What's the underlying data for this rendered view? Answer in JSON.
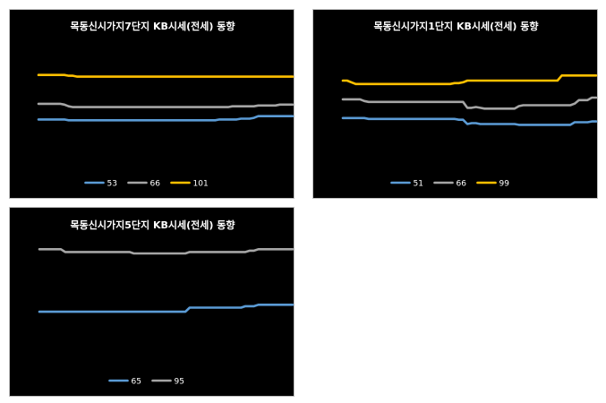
{
  "chart_data": [
    {
      "type": "line",
      "title": "목동신시가지7단지 KB시세(전세) 동향",
      "legend_position": "bottom",
      "grid": false,
      "x_count": 60,
      "ylim": [
        0,
        100
      ],
      "series": [
        {
          "name": "53",
          "color": "#5b9bd5",
          "values": [
            30,
            30,
            30,
            30,
            30,
            30,
            30,
            29,
            29,
            29,
            29,
            29,
            29,
            29,
            29,
            29,
            29,
            29,
            29,
            29,
            29,
            29,
            29,
            29,
            29,
            29,
            29,
            29,
            29,
            29,
            29,
            29,
            29,
            29,
            29,
            29,
            29,
            29,
            29,
            29,
            29,
            29,
            30,
            30,
            30,
            30,
            30,
            31,
            31,
            31,
            32,
            34,
            34,
            34,
            34,
            34,
            34,
            34,
            34,
            34
          ]
        },
        {
          "name": "66",
          "color": "#a5a5a5",
          "values": [
            49,
            49,
            49,
            49,
            49,
            49,
            48,
            46,
            45,
            45,
            45,
            45,
            45,
            45,
            45,
            45,
            45,
            45,
            45,
            45,
            45,
            45,
            45,
            45,
            45,
            45,
            45,
            45,
            45,
            45,
            45,
            45,
            45,
            45,
            45,
            45,
            45,
            45,
            45,
            45,
            45,
            45,
            45,
            45,
            45,
            46,
            46,
            46,
            46,
            46,
            46,
            47,
            47,
            47,
            47,
            47,
            48,
            48,
            48,
            48
          ]
        },
        {
          "name": "101",
          "color": "#ffc000",
          "values": [
            84,
            84,
            84,
            84,
            84,
            84,
            84,
            83,
            83,
            82,
            82,
            82,
            82,
            82,
            82,
            82,
            82,
            82,
            82,
            82,
            82,
            82,
            82,
            82,
            82,
            82,
            82,
            82,
            82,
            82,
            82,
            82,
            82,
            82,
            82,
            82,
            82,
            82,
            82,
            82,
            82,
            82,
            82,
            82,
            82,
            82,
            82,
            82,
            82,
            82,
            82,
            82,
            82,
            82,
            82,
            82,
            82,
            82,
            82,
            82
          ]
        }
      ]
    },
    {
      "type": "line",
      "title": "목동신시가지1단지 KB시세(전세) 동향",
      "legend_position": "bottom",
      "grid": false,
      "x_count": 60,
      "ylim": [
        0,
        100
      ],
      "series": [
        {
          "name": "51",
          "color": "#5b9bd5",
          "values": [
            36,
            36,
            36,
            36,
            36,
            36,
            35,
            35,
            35,
            35,
            35,
            35,
            35,
            35,
            35,
            35,
            35,
            35,
            35,
            35,
            35,
            35,
            35,
            35,
            35,
            35,
            35,
            34,
            34,
            29,
            30,
            30,
            29,
            29,
            29,
            29,
            29,
            29,
            29,
            29,
            29,
            28,
            28,
            28,
            28,
            28,
            28,
            28,
            28,
            28,
            28,
            28,
            28,
            28,
            31,
            31,
            31,
            31,
            32,
            32
          ]
        },
        {
          "name": "66",
          "color": "#a5a5a5",
          "values": [
            58,
            58,
            58,
            58,
            58,
            56,
            55,
            55,
            55,
            55,
            55,
            55,
            55,
            55,
            55,
            55,
            55,
            55,
            55,
            55,
            55,
            55,
            55,
            55,
            55,
            55,
            55,
            55,
            55,
            48,
            48,
            49,
            48,
            47,
            47,
            47,
            47,
            47,
            47,
            47,
            47,
            50,
            51,
            51,
            51,
            51,
            51,
            51,
            51,
            51,
            51,
            51,
            51,
            51,
            53,
            57,
            57,
            57,
            60,
            60
          ]
        },
        {
          "name": "99",
          "color": "#ffc000",
          "values": [
            80,
            80,
            78,
            76,
            76,
            76,
            76,
            76,
            76,
            76,
            76,
            76,
            76,
            76,
            76,
            76,
            76,
            76,
            76,
            76,
            76,
            76,
            76,
            76,
            76,
            76,
            77,
            77,
            78,
            80,
            80,
            80,
            80,
            80,
            80,
            80,
            80,
            80,
            80,
            80,
            80,
            80,
            80,
            80,
            80,
            80,
            80,
            80,
            80,
            80,
            80,
            86,
            86,
            86,
            86,
            86,
            86,
            86,
            86,
            86
          ]
        }
      ]
    },
    {
      "type": "line",
      "title": "목동신시가지5단지 KB시세(전세) 동향",
      "legend_position": "bottom",
      "grid": false,
      "x_count": 60,
      "ylim": [
        0,
        100
      ],
      "series": [
        {
          "name": "65",
          "color": "#5b9bd5",
          "values": [
            38,
            38,
            38,
            38,
            38,
            38,
            38,
            38,
            38,
            38,
            38,
            38,
            38,
            38,
            38,
            38,
            38,
            38,
            38,
            38,
            38,
            38,
            38,
            38,
            38,
            38,
            38,
            38,
            38,
            38,
            38,
            38,
            38,
            38,
            38,
            41,
            41,
            41,
            41,
            41,
            41,
            41,
            41,
            41,
            41,
            41,
            41,
            41,
            42,
            42,
            42,
            43,
            43,
            43,
            43,
            43,
            43,
            43,
            43,
            43
          ]
        },
        {
          "name": "95",
          "color": "#a5a5a5",
          "values": [
            83,
            83,
            83,
            83,
            83,
            83,
            81,
            81,
            81,
            81,
            81,
            81,
            81,
            81,
            81,
            81,
            81,
            81,
            81,
            81,
            81,
            81,
            80,
            80,
            80,
            80,
            80,
            80,
            80,
            80,
            80,
            80,
            80,
            80,
            80,
            81,
            81,
            81,
            81,
            81,
            81,
            81,
            81,
            81,
            81,
            81,
            81,
            81,
            81,
            82,
            82,
            83,
            83,
            83,
            83,
            83,
            83,
            83,
            83,
            83
          ]
        }
      ]
    }
  ]
}
